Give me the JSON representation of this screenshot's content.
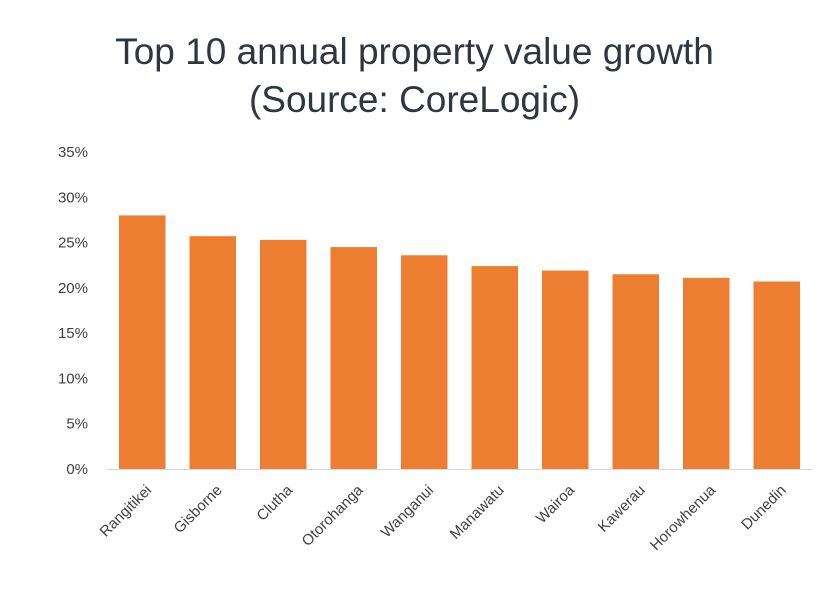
{
  "chart_data": {
    "type": "bar",
    "title": "Top 10 annual property value growth",
    "subtitle": "(Source: CoreLogic)",
    "categories": [
      "Rangitikei",
      "Gisborne",
      "Clutha",
      "Otorohanga",
      "Wanganui",
      "Manawatu",
      "Wairoa",
      "Kawerau",
      "Horowhenua",
      "Dunedin"
    ],
    "values": [
      28.0,
      25.7,
      25.3,
      24.5,
      23.6,
      22.4,
      21.9,
      21.5,
      21.1,
      20.7
    ],
    "ylim": [
      0,
      35
    ],
    "yticks": [
      0,
      5,
      10,
      15,
      20,
      25,
      30,
      35
    ],
    "ytick_labels": [
      "0%",
      "5%",
      "10%",
      "15%",
      "20%",
      "25%",
      "30%",
      "35%"
    ],
    "xlabel": "",
    "ylabel": "",
    "grid": false,
    "legend": "none",
    "bar_color": "#ED7D31",
    "axis_color": "#D9D9D9",
    "text_color": "#404040"
  }
}
